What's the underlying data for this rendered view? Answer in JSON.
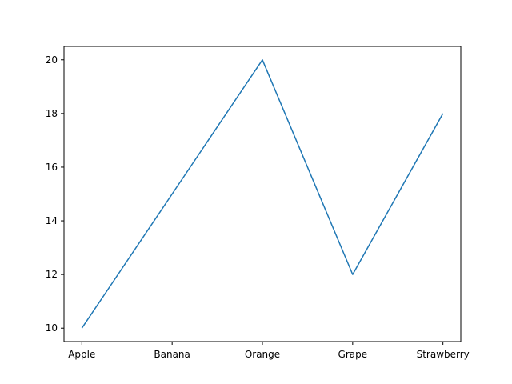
{
  "chart_data": {
    "type": "line",
    "title": "",
    "xlabel": "",
    "ylabel": "",
    "categories": [
      "Apple",
      "Banana",
      "Orange",
      "Grape",
      "Strawberry"
    ],
    "series": [
      {
        "values": [
          10,
          15,
          20,
          12,
          18
        ],
        "color": "#1f77b4"
      }
    ],
    "ylim": [
      9.5,
      20.5
    ],
    "yticks": [
      10,
      12,
      14,
      16,
      18,
      20
    ],
    "grid": false,
    "legend": false
  }
}
